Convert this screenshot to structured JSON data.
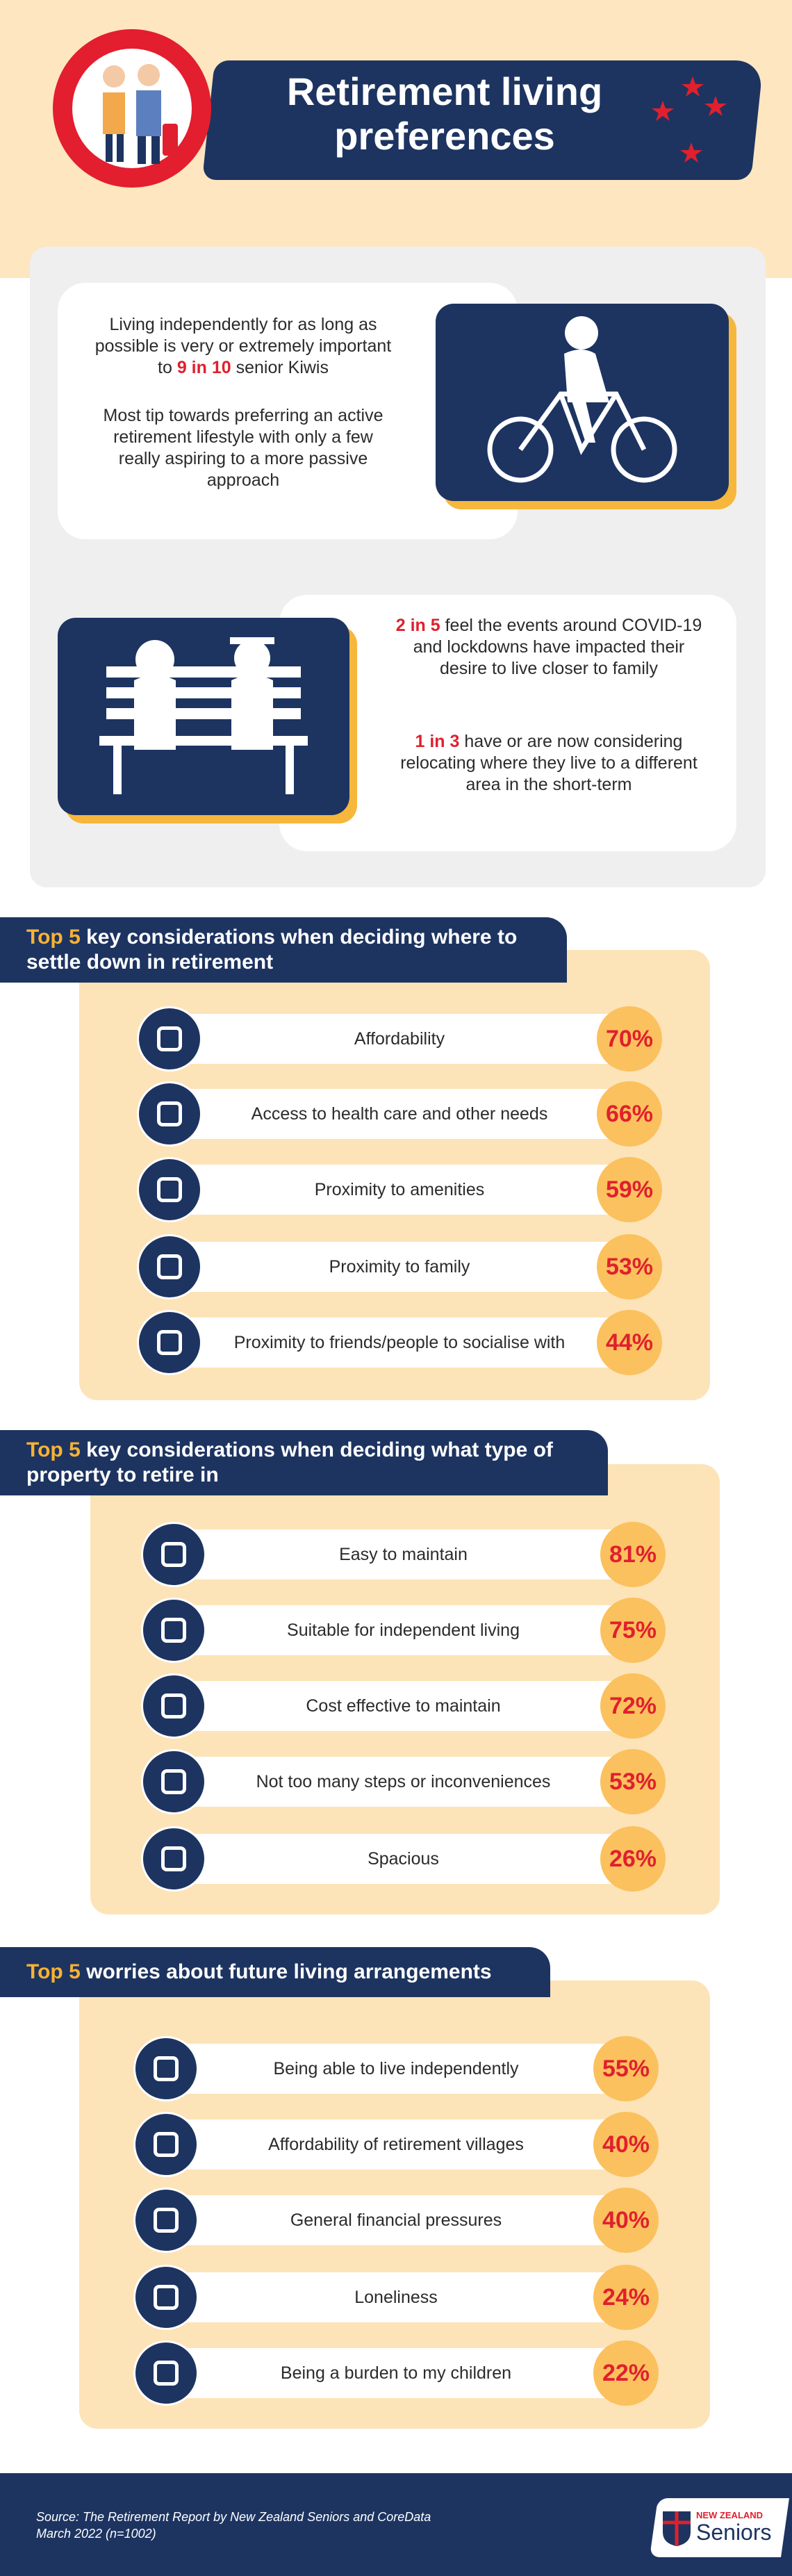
{
  "header": {
    "title": "Retirement living preferences"
  },
  "intro": {
    "card1": {
      "p1": {
        "before": "Living independently for as long as possible is very or extremely important to",
        "highlight": "9 in 10",
        "after": "senior Kiwis"
      },
      "p2": "Most tip towards preferring an active retirement lifestyle with only a few really aspiring to a more passive approach"
    },
    "card2": {
      "p1": {
        "highlight": "2 in 5",
        "after": "feel the events around COVID-19 and lockdowns have impacted their desire to live closer to family"
      },
      "p2": {
        "highlight": "1 in 3",
        "after": "have or are now considering relocating where they live to a different area in the short-term"
      }
    }
  },
  "sections": [
    {
      "highlight": "Top 5",
      "heading": "key considerations when deciding where to settle down in retirement",
      "items": [
        {
          "label": "Affordability",
          "percent": "70%"
        },
        {
          "label": "Access to health care and other needs",
          "percent": "66%"
        },
        {
          "label": "Proximity to amenities",
          "percent": "59%"
        },
        {
          "label": "Proximity to family",
          "percent": "53%"
        },
        {
          "label": "Proximity to friends/people to socialise with",
          "percent": "44%"
        }
      ]
    },
    {
      "highlight": "Top 5",
      "heading": "key considerations when deciding what type of property to retire in",
      "items": [
        {
          "label": "Easy to maintain",
          "percent": "81%"
        },
        {
          "label": "Suitable for independent living",
          "percent": "75%"
        },
        {
          "label": "Cost effective to maintain",
          "percent": "72%"
        },
        {
          "label": "Not too many steps or inconveniences",
          "percent": "53%"
        },
        {
          "label": "Spacious",
          "percent": "26%"
        }
      ]
    },
    {
      "highlight": "Top 5",
      "heading": "worries about future living arrangements",
      "items": [
        {
          "label": "Being able to live independently",
          "percent": "55%"
        },
        {
          "label": "Affordability of retirement villages",
          "percent": "40%"
        },
        {
          "label": "General financial pressures",
          "percent": "40%"
        },
        {
          "label": "Loneliness",
          "percent": "24%"
        },
        {
          "label": "Being a burden to my children",
          "percent": "22%"
        }
      ]
    }
  ],
  "footer": {
    "source": "Source: The Retirement Report by New Zealand Seniors and CoreData",
    "date": "March 2022 (n=1002)",
    "logo_top": "NEW ZEALAND",
    "logo_bottom": "Seniors"
  }
}
